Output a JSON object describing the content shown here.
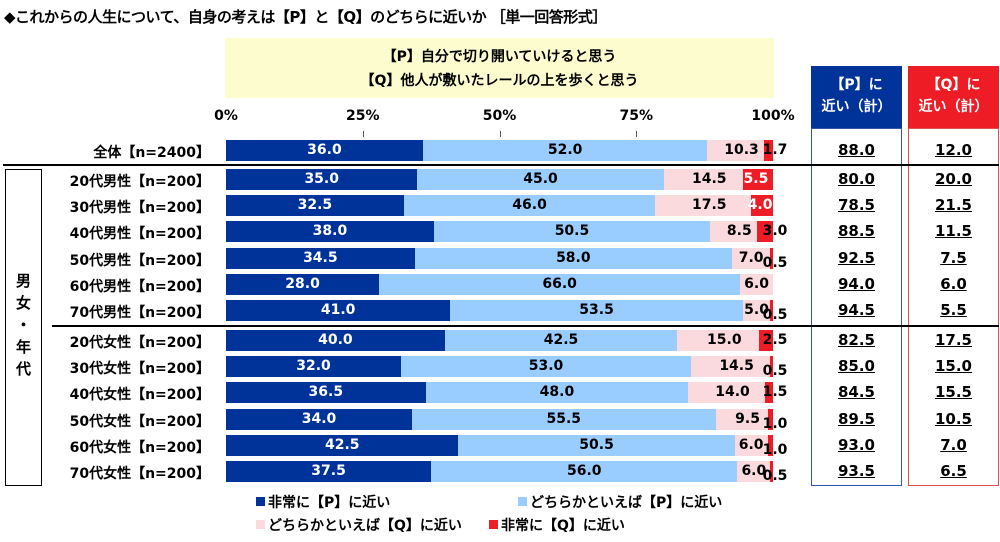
{
  "title": "◆これからの人生について、自身の考えは【P】と【Q】のどちらに近いか ［単一回答形式］",
  "question_box": {
    "line1": "【P】自分で切り開いていけると思う",
    "line2": "【Q】他人が敷いたレールの上を歩くと思う"
  },
  "summary_headers": {
    "p_line1": "【P】に",
    "p_line2": "近い（計）",
    "q_line1": "【Q】に",
    "q_line2": "近い（計）"
  },
  "group_label": [
    "男",
    "女",
    "・",
    "年",
    "代"
  ],
  "colors": {
    "strong_p": "#003399",
    "weak_p": "#99ccff",
    "weak_q": "#fadadd",
    "strong_q": "#ee1c25",
    "question_box": "#fdfccf"
  },
  "chart_data": {
    "type": "bar",
    "orientation": "horizontal-stacked-100",
    "title": "◆これからの人生について、自身の考えは【P】と【Q】のどちらに近いか ［単一回答形式］",
    "xlim": [
      0,
      100
    ],
    "x_ticks": [
      "0%",
      "25%",
      "50%",
      "75%",
      "100%"
    ],
    "categories": [
      "全体【n=2400】",
      "20代男性【n=200】",
      "30代男性【n=200】",
      "40代男性【n=200】",
      "50代男性【n=200】",
      "60代男性【n=200】",
      "70代男性【n=200】",
      "20代女性【n=200】",
      "30代女性【n=200】",
      "40代女性【n=200】",
      "50代女性【n=200】",
      "60代女性【n=200】",
      "70代女性【n=200】"
    ],
    "series": [
      {
        "name": "非常に【P】に近い",
        "values": [
          36.0,
          35.0,
          32.5,
          38.0,
          34.5,
          28.0,
          41.0,
          40.0,
          32.0,
          36.5,
          34.0,
          42.5,
          37.5
        ],
        "labels": [
          "36.0",
          "35.0",
          "32.5",
          "38.0",
          "34.5",
          "28.0",
          "41.0",
          "40.0",
          "32.0",
          "36.5",
          "34.0",
          "42.5",
          "37.5"
        ]
      },
      {
        "name": "どちらかといえば【P】に近い",
        "values": [
          52.0,
          45.0,
          46.0,
          50.5,
          58.0,
          66.0,
          53.5,
          42.5,
          53.0,
          48.0,
          55.5,
          50.5,
          56.0
        ],
        "labels": [
          "52.0",
          "45.0",
          "46.0",
          "50.5",
          "58.0",
          "66.0",
          "53.5",
          "42.5",
          "53.0",
          "48.0",
          "55.5",
          "50.5",
          "56.0"
        ]
      },
      {
        "name": "どちらかといえば【Q】に近い",
        "values": [
          10.3,
          14.5,
          17.5,
          8.5,
          7.0,
          6.0,
          5.0,
          15.0,
          14.5,
          14.0,
          9.5,
          6.0,
          6.0
        ],
        "labels": [
          "10.3",
          "14.5",
          "17.5",
          "8.5",
          "7.0",
          "6.0",
          "5.0",
          "15.0",
          "14.5",
          "14.0",
          "9.5",
          "6.0",
          "6.0"
        ]
      },
      {
        "name": "非常に【Q】に近い",
        "values": [
          1.7,
          5.5,
          4.0,
          3.0,
          0.5,
          0.0,
          0.5,
          2.5,
          0.5,
          1.5,
          1.0,
          1.0,
          0.5
        ],
        "labels": [
          "1.7",
          "5.5",
          "4.0",
          "3.0",
          "0.5",
          "",
          "0.5",
          "2.5",
          "0.5",
          "1.5",
          "1.0",
          "1.0",
          "0.5"
        ]
      }
    ],
    "totals": {
      "p_near": [
        "88.0",
        "80.0",
        "78.5",
        "88.5",
        "92.5",
        "94.0",
        "94.5",
        "82.5",
        "85.0",
        "84.5",
        "89.5",
        "93.0",
        "93.5"
      ],
      "q_near": [
        "12.0",
        "20.0",
        "21.5",
        "11.5",
        "7.5",
        "6.0",
        "5.5",
        "17.5",
        "15.0",
        "15.5",
        "10.5",
        "7.0",
        "6.5"
      ]
    },
    "legend_position": "bottom"
  }
}
